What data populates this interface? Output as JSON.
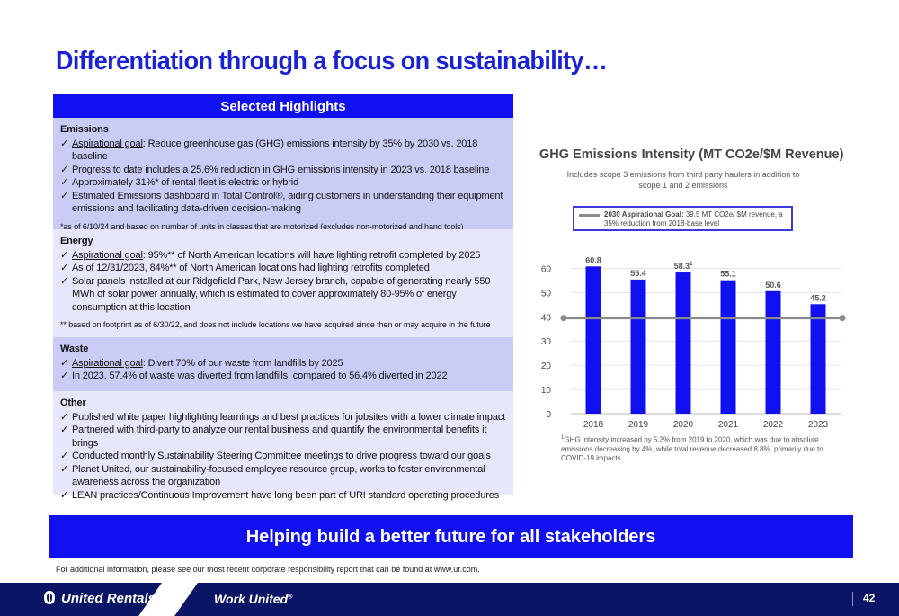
{
  "title": "Differentiation through a focus on sustainability…",
  "highlights": {
    "header": "Selected Highlights",
    "sections": [
      {
        "title": "Emissions",
        "items": [
          {
            "prefix": "Aspirational goal",
            "text": ": Reduce greenhouse gas (GHG) emissions intensity by 35% by 2030 vs. 2018 baseline"
          },
          {
            "text": "Progress to date includes a 25.6% reduction in GHG emissions intensity in 2023 vs. 2018 baseline"
          },
          {
            "text": "Approximately 31%* of rental fleet is electric or hybrid"
          },
          {
            "text": "Estimated Emissions dashboard in Total Control®, aiding customers in understanding their equipment emissions and facilitating data-driven decision-making"
          }
        ],
        "footnote": "*as of 6/10/24 and based on number of units in classes that are motorized (excludes non-motorized and hand tools)"
      },
      {
        "title": "Energy",
        "items": [
          {
            "prefix": "Aspirational goal",
            "text": ": 95%** of North American locations will have lighting retrofit completed by 2025"
          },
          {
            "text": "As of 12/31/2023, 84%** of North American locations had lighting retrofits completed"
          },
          {
            "text": "Solar panels installed at our Ridgefield Park, New Jersey branch, capable of generating nearly 550 MWh of solar power annually, which is estimated to cover approximately 80-95% of energy consumption at this location"
          }
        ],
        "footnote": "** based on footprint as of 6/30/22, and does not include locations we have acquired since then or may acquire in the future"
      },
      {
        "title": "Waste",
        "items": [
          {
            "prefix": "Aspirational goal",
            "text": ": Divert 70% of our waste from landfills by 2025"
          },
          {
            "text": "In 2023, 57.4% of waste was diverted from landfills, compared to 56.4% diverted in 2022"
          }
        ]
      },
      {
        "title": "Other",
        "items": [
          {
            "text": "Published white paper highlighting learnings and best practices for jobsites with a lower climate impact"
          },
          {
            "text": "Partnered with third-party to analyze our rental business and quantify the environmental benefits it brings"
          },
          {
            "text": "Conducted monthly Sustainability Steering Committee meetings to drive progress toward our goals"
          },
          {
            "text": "Planet United, our sustainability-focused employee resource group, works to foster environmental awareness across the organization"
          },
          {
            "text": "LEAN practices/Continuous Improvement have long been part of URI standard operating procedures"
          }
        ]
      }
    ]
  },
  "chart_data": {
    "type": "bar",
    "title": "GHG Emissions Intensity (MT CO2e/$M Revenue)",
    "subtitle": "Includes scope 3 emissions from third party haulers in addition to scope 1 and 2 emissions",
    "categories": [
      "2018",
      "2019",
      "2020",
      "2021",
      "2022",
      "2023"
    ],
    "values": [
      60.8,
      55.4,
      58.3,
      55.1,
      50.6,
      45.2
    ],
    "data_labels": [
      "60.8",
      "55.4",
      "58.3",
      "55.1",
      "50.6",
      "45.2"
    ],
    "label_superscripts": [
      "",
      "",
      "1",
      "",
      "",
      ""
    ],
    "yticks": [
      "0",
      "10",
      "20",
      "30",
      "40",
      "50",
      "60"
    ],
    "ylim": [
      0,
      65
    ],
    "bar_color": "#1010f0",
    "goal_line": {
      "value": 39.5,
      "color": "#8a8a8a"
    },
    "legend": {
      "label": "2030 Aspirational Goal:",
      "text": " 39.5 MT CO2e/ $M revenue, a 35% reduction from 2018-base level"
    },
    "note_marker": "1",
    "note": "GHG intensity increased by 5.3% from 2019 to 2020, which was due to absolute emissions decreasing by 4%, while total revenue decreased 8.8%, primarily due to COVID-19 impacts.",
    "grid": true
  },
  "banner": "Helping build a better future for all stakeholders",
  "bottom_note": "For additional information, please see our most recent corporate responsibility report that can be found at www.ur.com.",
  "footer": {
    "logo": "United Rentals",
    "tagline": "Work United",
    "reg": "®",
    "page": "42"
  },
  "colors": {
    "accent": "#1010f0",
    "title": "#1a22d8",
    "footer": "#0a1566",
    "section_dark": "#c9ccf4",
    "section_light": "#e6e7fa"
  }
}
